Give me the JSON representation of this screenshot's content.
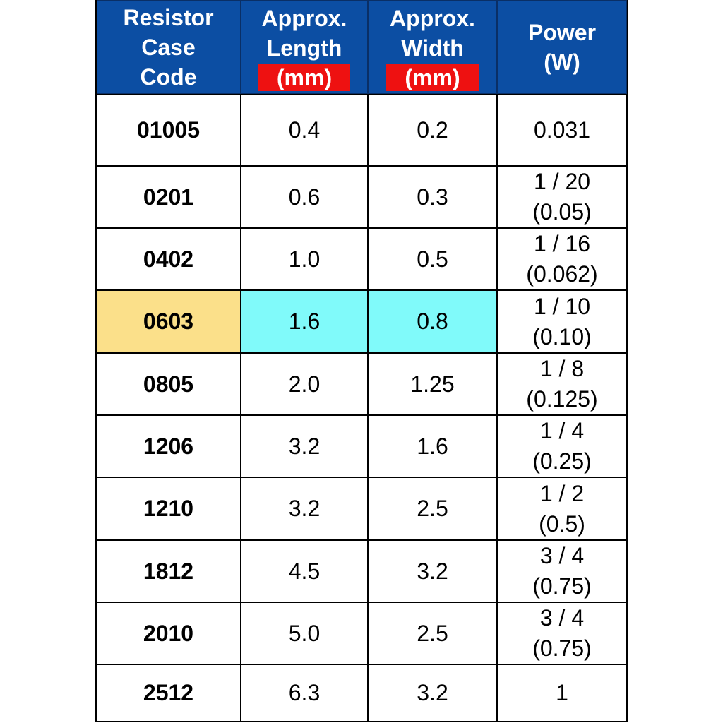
{
  "table": {
    "header": [
      {
        "lines": [
          "Resistor",
          "Case",
          "Code"
        ]
      },
      {
        "lines": [
          "Approx.",
          "Length"
        ],
        "unit": "(mm)"
      },
      {
        "lines": [
          "Approx.",
          "Width"
        ],
        "unit": "(mm)"
      },
      {
        "lines": [
          "Power",
          "(W)"
        ]
      }
    ],
    "rows": [
      [
        "01005",
        "0.4",
        "0.2",
        [
          "0.031"
        ]
      ],
      [
        "0201",
        "0.6",
        "0.3",
        [
          "1 / 20",
          "(0.05)"
        ]
      ],
      [
        "0402",
        "1.0",
        "0.5",
        [
          "1 / 16",
          "(0.062)"
        ]
      ],
      [
        "0603",
        "1.6",
        "0.8",
        [
          "1 / 10",
          "(0.10)"
        ]
      ],
      [
        "0805",
        "2.0",
        "1.25",
        [
          "1 / 8",
          "(0.125)"
        ]
      ],
      [
        "1206",
        "3.2",
        "1.6",
        [
          "1 / 4",
          "(0.25)"
        ]
      ],
      [
        "1210",
        "3.2",
        "2.5",
        [
          "1 / 2",
          "(0.5)"
        ]
      ],
      [
        "1812",
        "4.5",
        "3.2",
        [
          "3 / 4",
          "(0.75)"
        ]
      ],
      [
        "2010",
        "5.0",
        "2.5",
        [
          "3 / 4",
          "(0.75)"
        ]
      ],
      [
        "2512",
        "6.3",
        "3.2",
        [
          "1"
        ]
      ]
    ]
  }
}
